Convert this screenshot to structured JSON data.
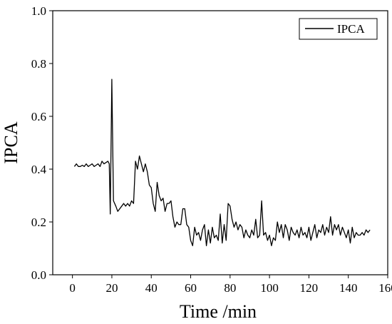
{
  "chart_data": {
    "type": "line",
    "title": "",
    "xlabel": "Time /min",
    "ylabel": "IPCA",
    "xlim": [
      -10,
      160
    ],
    "ylim": [
      0.0,
      1.0
    ],
    "x_ticks": [
      0,
      20,
      40,
      60,
      80,
      100,
      120,
      140,
      160
    ],
    "x_tick_labels": [
      "0",
      "20",
      "40",
      "60",
      "80",
      "100",
      "120",
      "140",
      "160"
    ],
    "y_ticks": [
      0.0,
      0.2,
      0.4,
      0.6,
      0.8,
      1.0
    ],
    "y_tick_labels": [
      "0.0",
      "0.2",
      "0.4",
      "0.6",
      "0.8",
      "1.0"
    ],
    "grid": false,
    "legend": {
      "position": "top-right",
      "entries": [
        "IPCA"
      ]
    },
    "series": [
      {
        "name": "IPCA",
        "color": "#000000",
        "points": [
          [
            1,
            0.41
          ],
          [
            2,
            0.42
          ],
          [
            3,
            0.41
          ],
          [
            4,
            0.41
          ],
          [
            5,
            0.415
          ],
          [
            6,
            0.41
          ],
          [
            7,
            0.42
          ],
          [
            8,
            0.41
          ],
          [
            9,
            0.415
          ],
          [
            10,
            0.42
          ],
          [
            11,
            0.41
          ],
          [
            12,
            0.415
          ],
          [
            13,
            0.42
          ],
          [
            14,
            0.41
          ],
          [
            15,
            0.43
          ],
          [
            16,
            0.42
          ],
          [
            17,
            0.425
          ],
          [
            18,
            0.43
          ],
          [
            18.7,
            0.42
          ],
          [
            19.2,
            0.23
          ],
          [
            20,
            0.74
          ],
          [
            20.8,
            0.28
          ],
          [
            22,
            0.26
          ],
          [
            23,
            0.24
          ],
          [
            24,
            0.25
          ],
          [
            25,
            0.26
          ],
          [
            26,
            0.27
          ],
          [
            27,
            0.26
          ],
          [
            28,
            0.27
          ],
          [
            29,
            0.26
          ],
          [
            30,
            0.28
          ],
          [
            31,
            0.27
          ],
          [
            32,
            0.43
          ],
          [
            33,
            0.4
          ],
          [
            34,
            0.45
          ],
          [
            35,
            0.42
          ],
          [
            36,
            0.39
          ],
          [
            37,
            0.42
          ],
          [
            38,
            0.39
          ],
          [
            39,
            0.34
          ],
          [
            40,
            0.33
          ],
          [
            41,
            0.27
          ],
          [
            42,
            0.24
          ],
          [
            43,
            0.35
          ],
          [
            44,
            0.3
          ],
          [
            45,
            0.28
          ],
          [
            46,
            0.29
          ],
          [
            47,
            0.24
          ],
          [
            48,
            0.27
          ],
          [
            49,
            0.27
          ],
          [
            50,
            0.28
          ],
          [
            51,
            0.22
          ],
          [
            52,
            0.18
          ],
          [
            53,
            0.2
          ],
          [
            54,
            0.19
          ],
          [
            55,
            0.19
          ],
          [
            56,
            0.25
          ],
          [
            57,
            0.25
          ],
          [
            58,
            0.19
          ],
          [
            59,
            0.18
          ],
          [
            60,
            0.13
          ],
          [
            61,
            0.11
          ],
          [
            62,
            0.18
          ],
          [
            63,
            0.15
          ],
          [
            64,
            0.16
          ],
          [
            65,
            0.13
          ],
          [
            66,
            0.17
          ],
          [
            67,
            0.19
          ],
          [
            68,
            0.11
          ],
          [
            69,
            0.17
          ],
          [
            70,
            0.12
          ],
          [
            71,
            0.18
          ],
          [
            72,
            0.14
          ],
          [
            73,
            0.15
          ],
          [
            74,
            0.13
          ],
          [
            75,
            0.23
          ],
          [
            76,
            0.12
          ],
          [
            77,
            0.19
          ],
          [
            78,
            0.13
          ],
          [
            79,
            0.27
          ],
          [
            80,
            0.26
          ],
          [
            81,
            0.21
          ],
          [
            82,
            0.18
          ],
          [
            83,
            0.2
          ],
          [
            84,
            0.17
          ],
          [
            85,
            0.19
          ],
          [
            86,
            0.18
          ],
          [
            87,
            0.14
          ],
          [
            88,
            0.17
          ],
          [
            89,
            0.15
          ],
          [
            90,
            0.14
          ],
          [
            91,
            0.17
          ],
          [
            92,
            0.15
          ],
          [
            93,
            0.21
          ],
          [
            94,
            0.14
          ],
          [
            95,
            0.15
          ],
          [
            96,
            0.28
          ],
          [
            97,
            0.15
          ],
          [
            98,
            0.16
          ],
          [
            99,
            0.13
          ],
          [
            100,
            0.15
          ],
          [
            101,
            0.11
          ],
          [
            102,
            0.14
          ],
          [
            103,
            0.13
          ],
          [
            104,
            0.2
          ],
          [
            105,
            0.16
          ],
          [
            106,
            0.19
          ],
          [
            107,
            0.14
          ],
          [
            108,
            0.19
          ],
          [
            109,
            0.17
          ],
          [
            110,
            0.13
          ],
          [
            111,
            0.18
          ],
          [
            112,
            0.16
          ],
          [
            113,
            0.15
          ],
          [
            114,
            0.17
          ],
          [
            115,
            0.14
          ],
          [
            116,
            0.18
          ],
          [
            117,
            0.15
          ],
          [
            118,
            0.16
          ],
          [
            119,
            0.14
          ],
          [
            120,
            0.18
          ],
          [
            121,
            0.13
          ],
          [
            122,
            0.16
          ],
          [
            123,
            0.19
          ],
          [
            124,
            0.14
          ],
          [
            125,
            0.17
          ],
          [
            126,
            0.16
          ],
          [
            127,
            0.19
          ],
          [
            128,
            0.15
          ],
          [
            129,
            0.18
          ],
          [
            130,
            0.16
          ],
          [
            131,
            0.22
          ],
          [
            132,
            0.15
          ],
          [
            133,
            0.19
          ],
          [
            134,
            0.17
          ],
          [
            135,
            0.19
          ],
          [
            136,
            0.15
          ],
          [
            137,
            0.18
          ],
          [
            138,
            0.16
          ],
          [
            139,
            0.14
          ],
          [
            140,
            0.17
          ],
          [
            141,
            0.12
          ],
          [
            142,
            0.18
          ],
          [
            143,
            0.14
          ],
          [
            144,
            0.16
          ],
          [
            145,
            0.15
          ],
          [
            146,
            0.15
          ],
          [
            147,
            0.16
          ],
          [
            148,
            0.15
          ],
          [
            149,
            0.17
          ],
          [
            150,
            0.16
          ],
          [
            151,
            0.17
          ]
        ]
      }
    ]
  }
}
